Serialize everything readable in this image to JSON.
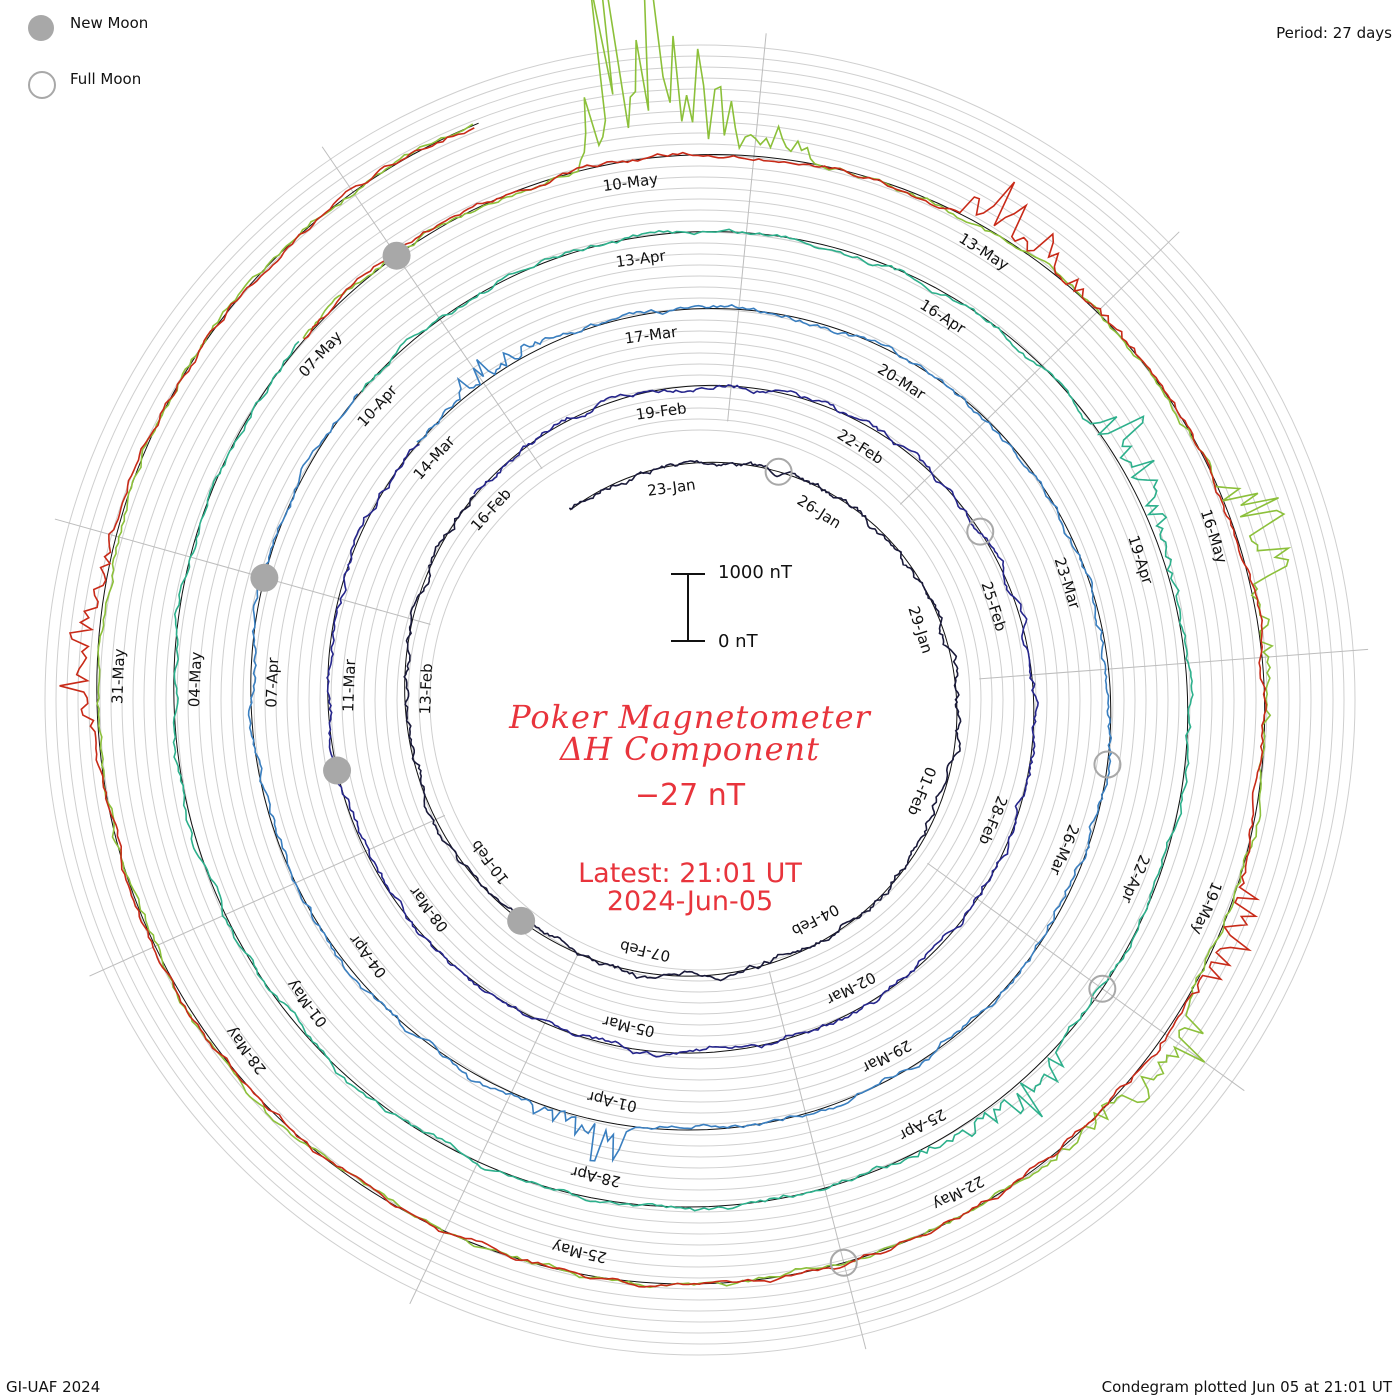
{
  "legend": {
    "new_moon_label": "New Moon",
    "full_moon_label": "Full Moon",
    "new_moon_color": "#a8a8a8",
    "full_moon_color": "#a8a8a8"
  },
  "period_label": "Period: 27 days",
  "center": {
    "title_line1": "Poker Magnetometer",
    "title_line2": "ΔH Component",
    "current_value": "−27 nT",
    "latest": "Latest: 21:01 UT",
    "date": "2024-Jun-05",
    "text_color": "#e8343c"
  },
  "scale_bar": {
    "top_label": "1000 nT",
    "bottom_label": "0 nT"
  },
  "footer": {
    "credit": "GI-UAF 2024",
    "plotted": "Condegram plotted Jun 05 at 21:01 UT"
  },
  "chart_data": {
    "type": "line",
    "subtype": "condegram-spiral",
    "period_days": 27,
    "start_date": "2024-01-21",
    "end_date": "2024-06-05",
    "units": "nT",
    "grid": true,
    "scale_bar_nT": [
      0,
      1000
    ],
    "series": [
      {
        "color": "#1a1a3a",
        "start": "2024-01-21",
        "end": "2024-02-16",
        "events": []
      },
      {
        "color": "#26268c",
        "start": "2024-02-16",
        "end": "2024-03-14",
        "events": []
      },
      {
        "color": "#3a7fc0",
        "start": "2024-03-14",
        "end": "2024-04-10",
        "events": [
          {
            "day": 1,
            "amp": 420
          },
          {
            "day": 18,
            "amp": 650
          }
        ]
      },
      {
        "color": "#2db08c",
        "start": "2024-04-10",
        "end": "2024-05-07",
        "events": [
          {
            "day": 8,
            "amp": 900
          },
          {
            "day": 14,
            "amp": 700
          }
        ]
      },
      {
        "color": "#8cc03a",
        "start": "2024-05-07",
        "end": "2024-06-05",
        "events": [
          {
            "day": 3,
            "amp": 4200
          },
          {
            "day": 9,
            "amp": 1200
          },
          {
            "day": 13,
            "amp": 900
          }
        ]
      },
      {
        "color": "#c82a18",
        "start": "2024-05-07",
        "end": "2024-06-05",
        "events": [
          {
            "day": 6,
            "amp": 800
          },
          {
            "day": 12,
            "amp": 600
          },
          {
            "day": 24,
            "amp": 700
          }
        ]
      }
    ],
    "date_labels": [
      "23-Jan",
      "26-Jan",
      "29-Jan",
      "01-Feb",
      "04-Feb",
      "07-Feb",
      "10-Feb",
      "13-Feb",
      "16-Feb",
      "19-Feb",
      "22-Feb",
      "25-Feb",
      "28-Feb",
      "02-Mar",
      "05-Mar",
      "08-Mar",
      "11-Mar",
      "14-Mar",
      "17-Mar",
      "20-Mar",
      "23-Mar",
      "26-Mar",
      "29-Mar",
      "01-Apr",
      "04-Apr",
      "07-Apr",
      "10-Apr",
      "13-Apr",
      "16-Apr",
      "19-Apr",
      "22-Apr",
      "25-Apr",
      "28-Apr",
      "01-May",
      "04-May",
      "07-May",
      "10-May",
      "13-May",
      "16-May",
      "19-May",
      "22-May",
      "25-May",
      "28-May",
      "31-May"
    ],
    "new_moons": [
      "2024-02-09",
      "2024-03-10",
      "2024-04-08",
      "2024-05-08"
    ],
    "full_moons": [
      "2024-01-25",
      "2024-02-24",
      "2024-03-25",
      "2024-04-23",
      "2024-05-23"
    ]
  }
}
